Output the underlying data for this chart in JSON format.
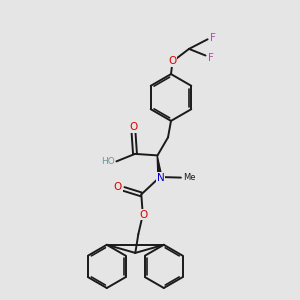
{
  "bg_color": "#e5e5e5",
  "bond_color": "#1a1a1a",
  "bond_width": 1.4,
  "atom_colors": {
    "O": "#dd0000",
    "N": "#0000cc",
    "F": "#bb44bb",
    "H_gray": "#669999",
    "C": "#1a1a1a"
  },
  "font_size_atom": 7.5,
  "font_size_small": 6.0
}
